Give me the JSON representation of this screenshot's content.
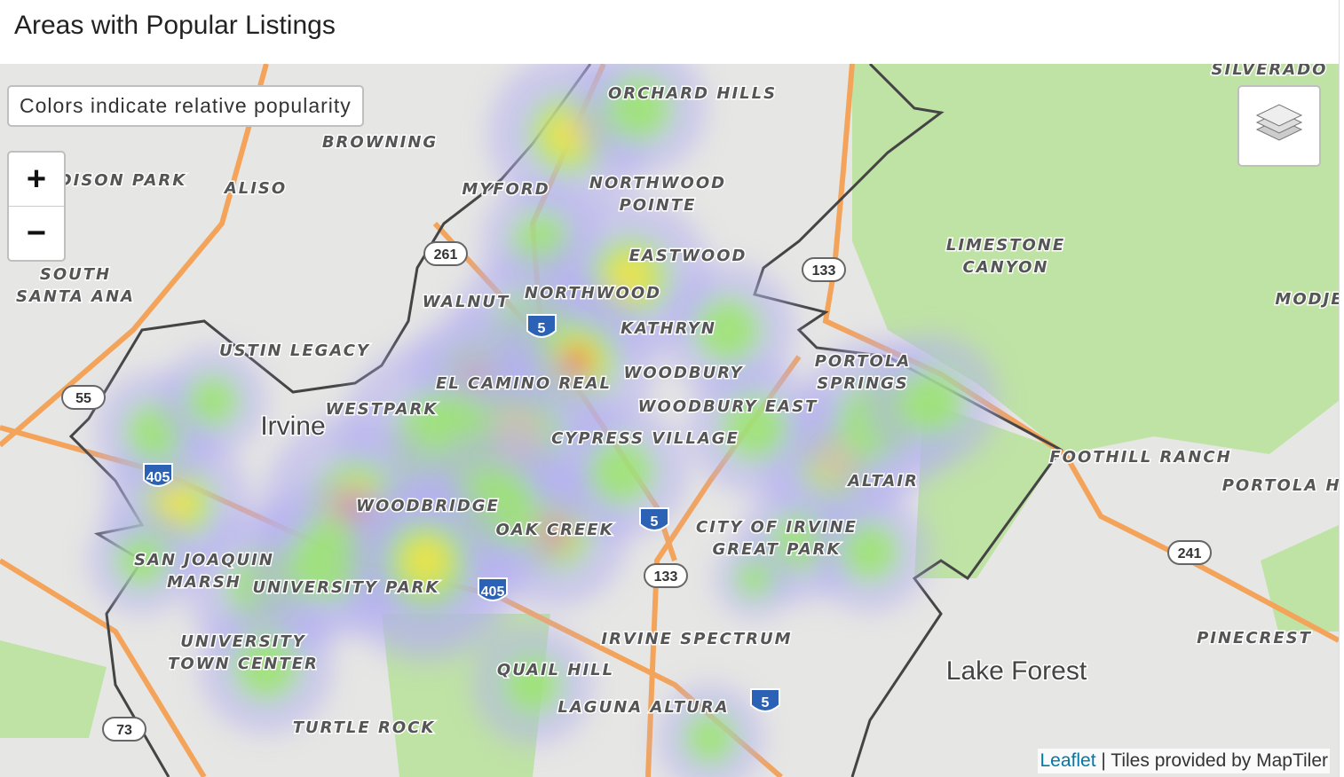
{
  "header": {
    "title": "Areas with Popular Listings"
  },
  "map": {
    "note": "Colors indicate relative popularity",
    "zoom_in": "+",
    "zoom_out": "−",
    "labels": [
      [
        "ORCHARD HILLS"
      ],
      [
        "BROWNING"
      ],
      [
        "ADISON PARK"
      ],
      [
        "ALISO"
      ],
      [
        "MYFORD"
      ],
      [
        "NORTHWOOD",
        "POINTE"
      ],
      [
        "SOUTH",
        "SANTA ANA"
      ],
      [
        "EASTWOOD"
      ],
      [
        "LIMESTONE",
        "CANYON"
      ],
      [
        "WALNUT"
      ],
      [
        "NORTHWOOD"
      ],
      [
        "MODJE"
      ],
      [
        "KATHRYN"
      ],
      [
        "USTIN LEGACY"
      ],
      [
        "PORTOLA",
        "SPRINGS"
      ],
      [
        "WOODBURY"
      ],
      [
        "EL CAMINO REAL"
      ],
      [
        "WESTPARK"
      ],
      [
        "WOODBURY EAST"
      ],
      [
        "CYPRESS VILLAGE"
      ],
      [
        "FOOTHILL RANCH"
      ],
      [
        "ALTAIR"
      ],
      [
        "PORTOLA HI"
      ],
      [
        "WOODBRIDGE"
      ],
      [
        "OAK CREEK"
      ],
      [
        "CITY OF IRVINE",
        "GREAT PARK"
      ],
      [
        "SAN JOAQUIN",
        "MARSH"
      ],
      [
        "UNIVERSITY PARK"
      ],
      [
        "IRVINE SPECTRUM"
      ],
      [
        "PINECREST"
      ],
      [
        "UNIVERSITY",
        "TOWN CENTER"
      ],
      [
        "QUAIL HILL"
      ],
      [
        "LAGUNA ALTURA"
      ],
      [
        "TURTLE ROCK"
      ],
      [
        "SILVERADO"
      ]
    ],
    "places": [
      "Irvine",
      "Lake Forest"
    ],
    "shields": [
      "261",
      "133",
      "55",
      "405",
      "5",
      "5",
      "133",
      "241",
      "405",
      "5",
      "73"
    ],
    "attribution": {
      "link": "Leaflet",
      "text": "| Tiles provided by MapTiler"
    }
  }
}
